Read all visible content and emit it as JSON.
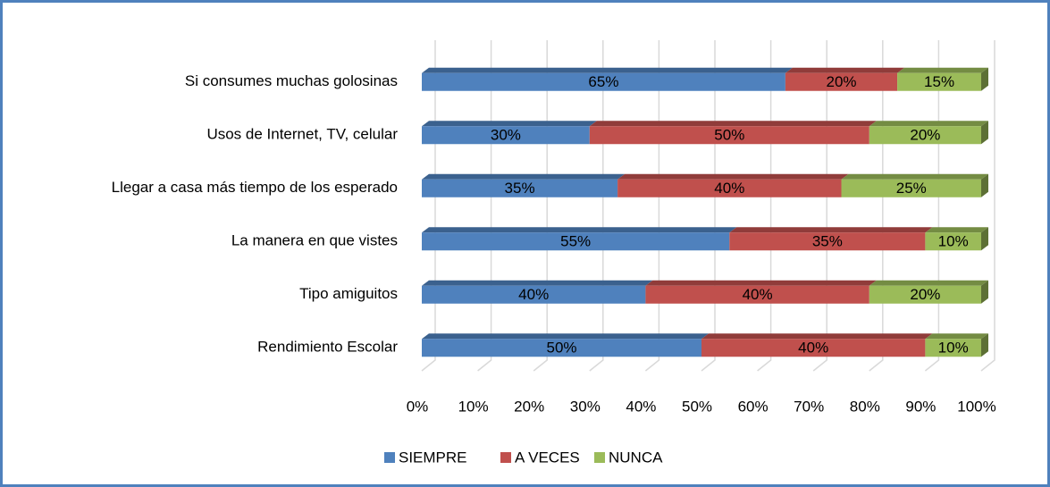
{
  "chart_data": {
    "type": "stacked-bar-100",
    "orientation": "horizontal",
    "categories": [
      "Si consumes muchas golosinas",
      "Usos de Internet, TV, celular",
      "Llegar a casa más tiempo de los esperado",
      "La manera en que vistes",
      "Tipo amiguitos",
      "Rendimiento Escolar"
    ],
    "series": [
      {
        "name": "SIEMPRE",
        "color": "#4f81bd",
        "values": [
          65,
          30,
          35,
          55,
          40,
          50
        ],
        "value_labels": [
          "65%",
          "30%",
          "35%",
          "55%",
          "40%",
          "50%"
        ]
      },
      {
        "name": "A VECES",
        "color": "#c0504d",
        "values": [
          20,
          50,
          40,
          35,
          40,
          40
        ],
        "value_labels": [
          "20%",
          "50%",
          "40%",
          "35%",
          "40%",
          "40%"
        ]
      },
      {
        "name": "NUNCA",
        "color": "#9bbb59",
        "values": [
          15,
          20,
          25,
          10,
          20,
          10
        ],
        "value_labels": [
          "15%",
          "20%",
          "25%",
          "10%",
          "20%",
          "10%"
        ]
      }
    ],
    "xlim": [
      0,
      100
    ],
    "xticks": [
      {
        "value": 0,
        "label": "0%"
      },
      {
        "value": 10,
        "label": "10%"
      },
      {
        "value": 20,
        "label": "20%"
      },
      {
        "value": 30,
        "label": "30%"
      },
      {
        "value": 40,
        "label": "40%"
      },
      {
        "value": 50,
        "label": "50%"
      },
      {
        "value": 60,
        "label": "60%"
      },
      {
        "value": 70,
        "label": "70%"
      },
      {
        "value": 80,
        "label": "80%"
      },
      {
        "value": 90,
        "label": "90%"
      },
      {
        "value": 100,
        "label": "100%"
      }
    ],
    "grid": true,
    "legend": "bottom"
  }
}
